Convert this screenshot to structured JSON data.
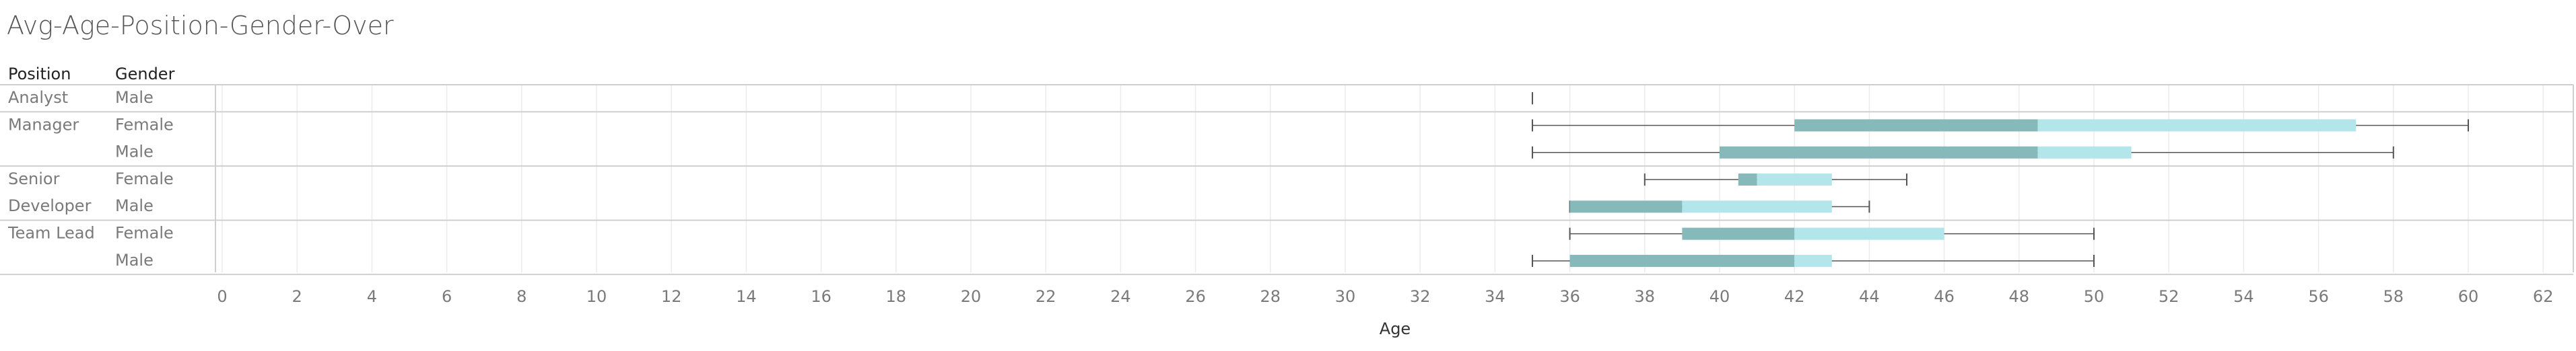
{
  "title": "Avg-Age-Position-Gender-Over",
  "headers": {
    "position": "Position",
    "gender": "Gender"
  },
  "colors": {
    "box_lower": "#86b9b9",
    "box_upper": "#b2e6ea",
    "whisker": "#555555",
    "grid": "#ececec",
    "separator": "#cfcfcf"
  },
  "chart_data": {
    "type": "boxplot",
    "title": "Avg-Age-Position-Gender-Over",
    "xlabel": "Age",
    "xlim": [
      0,
      63
    ],
    "xticks": [
      "0",
      "2",
      "4",
      "6",
      "8",
      "10",
      "12",
      "14",
      "16",
      "18",
      "20",
      "22",
      "24",
      "26",
      "28",
      "30",
      "32",
      "34",
      "36",
      "38",
      "40",
      "42",
      "44",
      "46",
      "48",
      "50",
      "52",
      "54",
      "56",
      "58",
      "60",
      "62"
    ],
    "groups": [
      {
        "position_lines": [
          "Analyst"
        ],
        "rows": [
          {
            "gender": "Male",
            "min": 35,
            "q1": 35,
            "median": 35,
            "q3": 35,
            "max": 35
          }
        ]
      },
      {
        "position_lines": [
          "Manager"
        ],
        "rows": [
          {
            "gender": "Female",
            "min": 35,
            "q1": 42,
            "median": 48.5,
            "q3": 57,
            "max": 60
          },
          {
            "gender": "Male",
            "min": 35,
            "q1": 40,
            "median": 48.5,
            "q3": 51,
            "max": 58
          }
        ]
      },
      {
        "position_lines": [
          "Senior",
          "Developer"
        ],
        "rows": [
          {
            "gender": "Female",
            "min": 38,
            "q1": 40.5,
            "median": 41,
            "q3": 43,
            "max": 45
          },
          {
            "gender": "Male",
            "min": 36,
            "q1": 36,
            "median": 39,
            "q3": 43,
            "max": 44
          }
        ]
      },
      {
        "position_lines": [
          "Team Lead"
        ],
        "rows": [
          {
            "gender": "Female",
            "min": 36,
            "q1": 39,
            "median": 42,
            "q3": 46,
            "max": 50
          },
          {
            "gender": "Male",
            "min": 35,
            "q1": 36,
            "median": 42,
            "q3": 43,
            "max": 50
          }
        ]
      }
    ]
  }
}
